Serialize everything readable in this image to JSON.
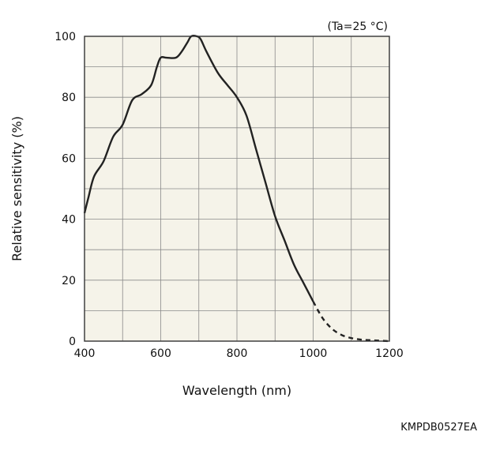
{
  "chart_data": {
    "type": "line",
    "title": "",
    "condition": "(Ta=25 °C)",
    "xlabel": "Wavelength (nm)",
    "ylabel": "Relative sensitivity (%)",
    "xlim": [
      400,
      1200
    ],
    "ylim": [
      0,
      100
    ],
    "x_ticks": [
      "400",
      "600",
      "800",
      "1000",
      "1200"
    ],
    "y_ticks": [
      "0",
      "20",
      "40",
      "60",
      "80",
      "100"
    ],
    "grid": true,
    "plot_background": "#f5f3e9",
    "line_color": "#222222",
    "series": [
      {
        "style": "solid",
        "points": [
          [
            400,
            42
          ],
          [
            410,
            47
          ],
          [
            425,
            54
          ],
          [
            450,
            59
          ],
          [
            475,
            67
          ],
          [
            500,
            71
          ],
          [
            525,
            79
          ],
          [
            550,
            81
          ],
          [
            575,
            84
          ],
          [
            590,
            90
          ],
          [
            600,
            93
          ],
          [
            615,
            93
          ],
          [
            640,
            93
          ],
          [
            655,
            95
          ],
          [
            670,
            98
          ],
          [
            680,
            100
          ],
          [
            695,
            100
          ],
          [
            705,
            99
          ],
          [
            720,
            95
          ],
          [
            750,
            88
          ],
          [
            775,
            84
          ],
          [
            800,
            80
          ],
          [
            825,
            74
          ],
          [
            850,
            63
          ],
          [
            875,
            52
          ],
          [
            900,
            41
          ],
          [
            925,
            33
          ],
          [
            950,
            25
          ],
          [
            975,
            19
          ],
          [
            1000,
            13
          ]
        ]
      },
      {
        "style": "dashed",
        "points": [
          [
            1000,
            13
          ],
          [
            1025,
            7.5
          ],
          [
            1050,
            4
          ],
          [
            1075,
            2
          ],
          [
            1100,
            1
          ],
          [
            1125,
            0.5
          ],
          [
            1150,
            0.3
          ],
          [
            1200,
            0
          ]
        ]
      }
    ]
  },
  "figure_code": "KMPDB0527EA"
}
